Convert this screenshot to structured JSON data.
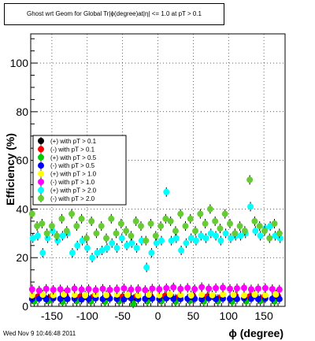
{
  "page": {
    "title": "Ghost wrt Geom for Global Tr|ϕ(degree)at|η| <= 1.0 at pT > 0.1",
    "footer": "Wed Nov  9 10:46:48 2011"
  },
  "chart_data": {
    "type": "scatter",
    "title": "Ghost wrt Geom for Global Tr|ϕ(degree)at|η| <= 1.0 at pT > 0.1",
    "xlabel": "ϕ (degree)",
    "ylabel": "Efficiency (%)",
    "xlim": [
      -180,
      180
    ],
    "ylim": [
      0,
      112
    ],
    "xticks": [
      -150,
      -100,
      -50,
      0,
      50,
      100,
      150
    ],
    "yticks": [
      20,
      40,
      60,
      80,
      100
    ],
    "grid": true,
    "legend_position": "left-middle",
    "colors": {
      "black": "#000000",
      "red": "#ff0000",
      "green": "#00cc00",
      "blue": "#0000ff",
      "yellow": "#ffff00",
      "magenta": "#ff00ff",
      "cyan": "#00ffff",
      "lightgreen": "#66cc33"
    },
    "legend": [
      "(+) with pT > 0.1",
      "(-) with pT > 0.1",
      "(+) with pT > 0.5",
      "(-) with pT > 0.5",
      "(+) with pT > 1.0",
      "(-) with pT > 1.0",
      "(+) with pT > 2.0",
      "(-) with pT > 2.0"
    ],
    "series": [
      {
        "name": "(+) with pT > 0.1",
        "color": "#000000",
        "x": [
          -175,
          -155,
          -135,
          -115,
          -95,
          -75,
          -55,
          -35,
          -15,
          5,
          25,
          45,
          65,
          85,
          105,
          125,
          145,
          165
        ],
        "y": [
          3,
          3.2,
          3,
          3.1,
          3,
          3.3,
          3.1,
          3,
          3.2,
          3,
          3.1,
          3.3,
          3.1,
          3,
          3.2,
          3.1,
          3,
          3.1
        ]
      },
      {
        "name": "(-) with pT > 0.1",
        "color": "#ff0000",
        "x": [
          -170,
          -150,
          -130,
          -110,
          -90,
          -70,
          -50,
          -30,
          -10,
          10,
          30,
          50,
          70,
          90,
          110,
          130,
          150,
          170
        ],
        "y": [
          4,
          4.2,
          4.1,
          4,
          4.3,
          4.1,
          4,
          4.2,
          4.1,
          4.3,
          4,
          4.2,
          4.1,
          4,
          4.3,
          4.1,
          4,
          4.2
        ]
      },
      {
        "name": "(+) with pT > 0.5",
        "color": "#00cc00",
        "x": [
          -175,
          -155,
          -135,
          -115,
          -95,
          -75,
          -55,
          -35,
          -15,
          5,
          25,
          45,
          65,
          85,
          105,
          125,
          145,
          165
        ],
        "y": [
          2,
          2.2,
          1.8,
          2.1,
          2,
          1.9,
          2.1,
          1.2,
          2,
          2.1,
          1.9,
          2.2,
          2,
          2.1,
          1.9,
          2,
          2.2,
          2
        ]
      },
      {
        "name": "(-) with pT > 0.5",
        "color": "#0000ff",
        "x": [
          -178,
          -168,
          -158,
          -148,
          -138,
          -128,
          -118,
          -108,
          -98,
          -88,
          -78,
          -68,
          -58,
          -48,
          -38,
          -28,
          -18,
          -8,
          2,
          12,
          22,
          32,
          42,
          52,
          62,
          72,
          82,
          92,
          102,
          112,
          122,
          132,
          142,
          152,
          162,
          172
        ],
        "y": [
          3,
          3.2,
          2.9,
          3.3,
          3.1,
          3,
          3.2,
          2.8,
          3.1,
          3.3,
          3,
          3.2,
          3.1,
          2.9,
          3.3,
          3,
          3.1,
          3.2,
          3,
          3.3,
          3.1,
          3,
          3.2,
          3.1,
          2.9,
          3.3,
          3,
          3.2,
          3.1,
          3,
          3.3,
          3.1,
          3,
          3.2,
          3.1,
          3
        ]
      },
      {
        "name": "(+) with pT > 1.0",
        "color": "#ffff00",
        "x": [
          -178,
          -163,
          -148,
          -133,
          -118,
          -103,
          -88,
          -73,
          -58,
          -43,
          -28,
          -13,
          2,
          17,
          32,
          47,
          62,
          77,
          92,
          107,
          122,
          137,
          152,
          167
        ],
        "y": [
          4.5,
          4.8,
          4.6,
          4.9,
          4.7,
          4.5,
          4.8,
          4.6,
          4.9,
          4.7,
          4.5,
          4.8,
          4.6,
          4.9,
          4.7,
          4.5,
          4.8,
          4.6,
          4.9,
          4.7,
          4.5,
          4.8,
          4.6,
          4.9
        ]
      },
      {
        "name": "(-) with pT > 1.0",
        "color": "#ff00ff",
        "x": [
          -178,
          -168,
          -158,
          -148,
          -138,
          -128,
          -118,
          -108,
          -98,
          -88,
          -78,
          -68,
          -58,
          -48,
          -38,
          -28,
          -18,
          -8,
          2,
          12,
          22,
          32,
          42,
          52,
          62,
          72,
          82,
          92,
          102,
          112,
          122,
          132,
          142,
          152,
          162,
          172
        ],
        "y": [
          7,
          6.5,
          7.2,
          6.8,
          7,
          6.6,
          7.3,
          6.9,
          7.1,
          6.7,
          7.2,
          6.8,
          7,
          7.4,
          6.9,
          7.1,
          6.7,
          7.3,
          7,
          7.5,
          7.8,
          7.2,
          7.6,
          7.1,
          7.9,
          7.3,
          7.5,
          7.7,
          7.2,
          7.4,
          7.6,
          7,
          7.3,
          7.5,
          7.1,
          6.9
        ]
      },
      {
        "name": "(+) with pT > 2.0",
        "color": "#00ffff",
        "x": [
          -177,
          -170,
          -163,
          -156,
          -149,
          -142,
          -135,
          -128,
          -121,
          -114,
          -107,
          -100,
          -93,
          -86,
          -79,
          -72,
          -65,
          -58,
          -51,
          -44,
          -37,
          -30,
          -23,
          -16,
          -9,
          -2,
          5,
          12,
          19,
          26,
          33,
          40,
          47,
          54,
          61,
          68,
          75,
          82,
          89,
          96,
          103,
          110,
          117,
          124,
          131,
          138,
          145,
          152,
          159,
          166,
          173
        ],
        "y": [
          28,
          29,
          22,
          28,
          31,
          27,
          29,
          30,
          22,
          25,
          27,
          24,
          20,
          22,
          23,
          24,
          26,
          24,
          28,
          25,
          26,
          24,
          27,
          16,
          22,
          26,
          27,
          47,
          27,
          28,
          23,
          26,
          28,
          27,
          29,
          28,
          30,
          29,
          27,
          30,
          28,
          29,
          29,
          30,
          41,
          31,
          29,
          32,
          33,
          29,
          28
        ]
      },
      {
        "name": "(-) with pT > 2.0",
        "color": "#66cc33",
        "x": [
          -178,
          -171,
          -164,
          -157,
          -150,
          -143,
          -136,
          -129,
          -122,
          -115,
          -108,
          -101,
          -94,
          -87,
          -80,
          -73,
          -66,
          -59,
          -52,
          -45,
          -38,
          -31,
          -24,
          -17,
          -10,
          -3,
          4,
          11,
          18,
          25,
          32,
          39,
          46,
          53,
          60,
          67,
          74,
          81,
          88,
          95,
          102,
          109,
          116,
          123,
          130,
          137,
          144,
          151,
          158,
          165,
          172
        ],
        "y": [
          38,
          33,
          34,
          30,
          33,
          29,
          36,
          31,
          38,
          33,
          36,
          28,
          35,
          30,
          33,
          28,
          36,
          30,
          34,
          31,
          29,
          35,
          33,
          27,
          34,
          29,
          33,
          36,
          35,
          31,
          38,
          33,
          36,
          31,
          38,
          34,
          40,
          35,
          32,
          38,
          34,
          30,
          33,
          31,
          52,
          35,
          33,
          31,
          28,
          34,
          30
        ]
      }
    ]
  }
}
